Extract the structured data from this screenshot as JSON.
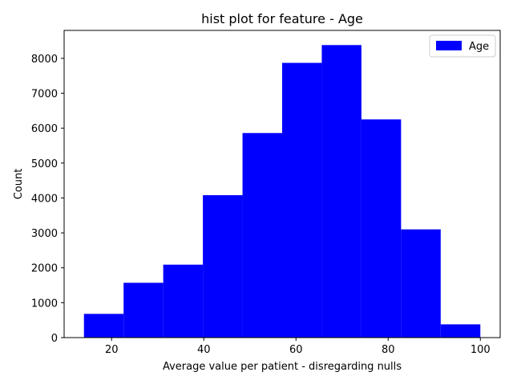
{
  "chart_data": {
    "type": "bar",
    "title": "hist plot for feature -  Age",
    "xlabel": "Average value per patient - disregarding nulls",
    "ylabel": "Count",
    "bins": [
      {
        "start": 14.0,
        "end": 22.6,
        "count": 680
      },
      {
        "start": 22.6,
        "end": 31.2,
        "count": 1570
      },
      {
        "start": 31.2,
        "end": 39.8,
        "count": 2090
      },
      {
        "start": 39.8,
        "end": 48.4,
        "count": 4080
      },
      {
        "start": 48.4,
        "end": 57.0,
        "count": 5860
      },
      {
        "start": 57.0,
        "end": 65.6,
        "count": 7870
      },
      {
        "start": 65.6,
        "end": 74.2,
        "count": 8380
      },
      {
        "start": 74.2,
        "end": 82.8,
        "count": 6250
      },
      {
        "start": 82.8,
        "end": 91.4,
        "count": 3100
      },
      {
        "start": 91.4,
        "end": 100.0,
        "count": 380
      }
    ],
    "xlim": [
      9.7,
      104.3
    ],
    "ylim": [
      0,
      8800
    ],
    "xticks": [
      20,
      40,
      60,
      80,
      100
    ],
    "yticks": [
      0,
      1000,
      2000,
      3000,
      4000,
      5000,
      6000,
      7000,
      8000
    ],
    "legend": {
      "position": "top-right",
      "entries": [
        {
          "name": "Age",
          "color": "#0000ff"
        }
      ]
    },
    "bar_color": "#0000ff",
    "grid": false
  }
}
